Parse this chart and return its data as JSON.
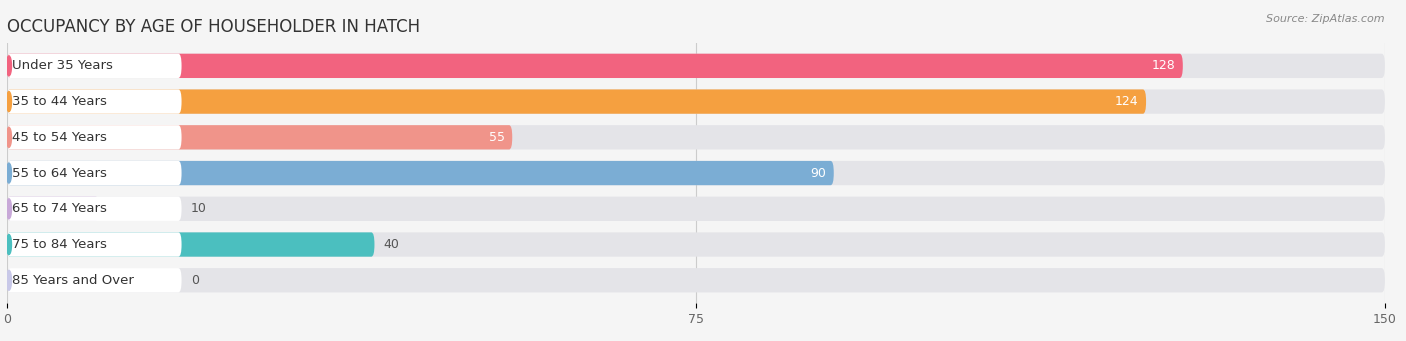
{
  "title": "OCCUPANCY BY AGE OF HOUSEHOLDER IN HATCH",
  "source": "Source: ZipAtlas.com",
  "categories": [
    "Under 35 Years",
    "35 to 44 Years",
    "45 to 54 Years",
    "55 to 64 Years",
    "65 to 74 Years",
    "75 to 84 Years",
    "85 Years and Over"
  ],
  "values": [
    128,
    124,
    55,
    90,
    10,
    40,
    0
  ],
  "bar_colors": [
    "#F2637F",
    "#F5A040",
    "#F0948A",
    "#7BADD4",
    "#C8A8D8",
    "#4BBFBF",
    "#C8C8E8"
  ],
  "bg_color": "#f5f5f5",
  "bar_bg_color": "#e4e4e8",
  "xlim_max": 150,
  "xticks": [
    0,
    75,
    150
  ],
  "title_fontsize": 12,
  "label_fontsize": 9.5,
  "value_fontsize": 9,
  "inside_threshold": 55
}
